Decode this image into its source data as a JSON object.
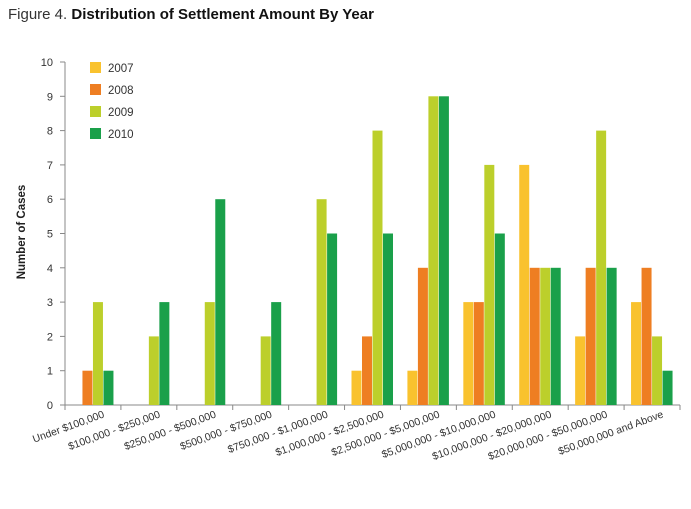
{
  "figure": {
    "prefix": "Figure 4.",
    "title": "Distribution of Settlement Amount By Year"
  },
  "chart_data": {
    "type": "bar",
    "ylabel": "Number of Cases",
    "xlabel": "",
    "ylim": [
      0,
      10
    ],
    "yticks": [
      0,
      1,
      2,
      3,
      4,
      5,
      6,
      7,
      8,
      9,
      10
    ],
    "grid": false,
    "legend_position": "top-left",
    "categories": [
      "Under $100,000",
      "$100,000 - $250,000",
      "$250,000 - $500,000",
      "$500,000 - $750,000",
      "$750,000 - $1,000,000",
      "$1,000,000 - $2,500,000",
      "$2,500,000 - $5,000,000",
      "$5,000,000 - $10,000,000",
      "$10,000,000 - $20,000,000",
      "$20,000,000 - $50,000,000",
      "$50,000,000 and Above"
    ],
    "series": [
      {
        "name": "2007",
        "color": "#F9C22E",
        "values": [
          0,
          0,
          0,
          0,
          0,
          1,
          1,
          3,
          7,
          2,
          3
        ]
      },
      {
        "name": "2008",
        "color": "#EE7E22",
        "values": [
          1,
          0,
          0,
          0,
          0,
          2,
          4,
          3,
          4,
          4,
          4
        ]
      },
      {
        "name": "2009",
        "color": "#BCCF2B",
        "values": [
          3,
          2,
          3,
          2,
          6,
          8,
          9,
          7,
          4,
          8,
          2
        ]
      },
      {
        "name": "2010",
        "color": "#1AA04A",
        "values": [
          1,
          3,
          6,
          3,
          5,
          5,
          9,
          5,
          4,
          4,
          1
        ]
      }
    ]
  }
}
